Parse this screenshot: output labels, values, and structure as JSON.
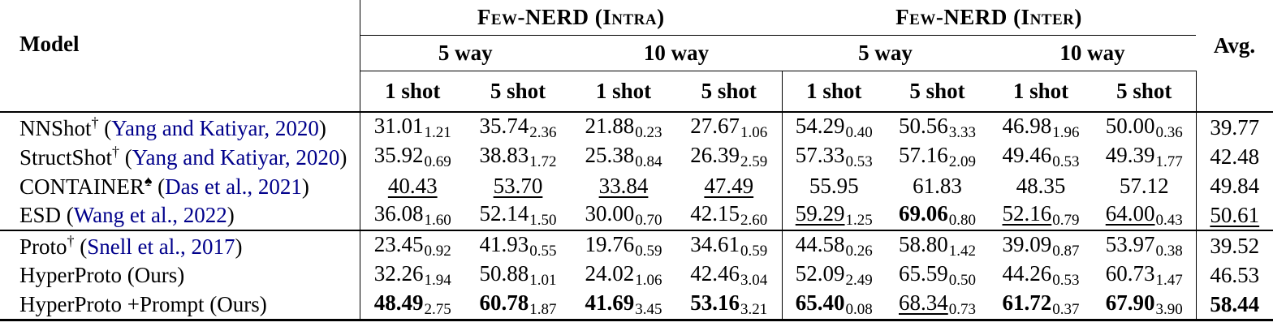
{
  "colors": {
    "citation_link": "#00008B"
  },
  "table": {
    "header": {
      "model_label": "Model",
      "avg_label": "Avg.",
      "dataset_groups": [
        "Few-NERD (Intra)",
        "Few-NERD (Inter)"
      ],
      "way_labels": [
        "5 way",
        "10 way",
        "5 way",
        "10 way"
      ],
      "shot_labels": [
        "1 shot",
        "5 shot",
        "1 shot",
        "5 shot",
        "1 shot",
        "5 shot",
        "1 shot",
        "5 shot"
      ]
    },
    "groups": [
      {
        "rows": [
          {
            "model": {
              "name": "NNShot",
              "sup": "†",
              "cite": "Yang and Katiyar, 2020"
            },
            "cells": [
              {
                "v": "31.01",
                "s": "1.21"
              },
              {
                "v": "35.74",
                "s": "2.36"
              },
              {
                "v": "21.88",
                "s": "0.23"
              },
              {
                "v": "27.67",
                "s": "1.06"
              },
              {
                "v": "54.29",
                "s": "0.40"
              },
              {
                "v": "50.56",
                "s": "3.33"
              },
              {
                "v": "46.98",
                "s": "1.96"
              },
              {
                "v": "50.00",
                "s": "0.36"
              }
            ],
            "avg": {
              "v": "39.77"
            }
          },
          {
            "model": {
              "name": "StructShot",
              "sup": "†",
              "cite": "Yang and Katiyar, 2020"
            },
            "cells": [
              {
                "v": "35.92",
                "s": "0.69"
              },
              {
                "v": "38.83",
                "s": "1.72"
              },
              {
                "v": "25.38",
                "s": "0.84"
              },
              {
                "v": "26.39",
                "s": "2.59"
              },
              {
                "v": "57.33",
                "s": "0.53"
              },
              {
                "v": "57.16",
                "s": "2.09"
              },
              {
                "v": "49.46",
                "s": "0.53"
              },
              {
                "v": "49.39",
                "s": "1.77"
              }
            ],
            "avg": {
              "v": "42.48"
            }
          },
          {
            "model": {
              "name": "CONTAINER",
              "sup": "♠",
              "cite": "Das et al., 2021"
            },
            "cells": [
              {
                "v": "40.43",
                "st": "u"
              },
              {
                "v": "53.70",
                "st": "u"
              },
              {
                "v": "33.84",
                "st": "u"
              },
              {
                "v": "47.49",
                "st": "u"
              },
              {
                "v": "55.95"
              },
              {
                "v": "61.83"
              },
              {
                "v": "48.35"
              },
              {
                "v": "57.12"
              }
            ],
            "avg": {
              "v": "49.84"
            }
          },
          {
            "model": {
              "name": "ESD",
              "sup": "",
              "cite": "Wang et al., 2022"
            },
            "cells": [
              {
                "v": "36.08",
                "s": "1.60"
              },
              {
                "v": "52.14",
                "s": "1.50"
              },
              {
                "v": "30.00",
                "s": "0.70"
              },
              {
                "v": "42.15",
                "s": "2.60"
              },
              {
                "v": "59.29",
                "s": "1.25",
                "st": "u"
              },
              {
                "v": "69.06",
                "s": "0.80",
                "st": "b"
              },
              {
                "v": "52.16",
                "s": "0.79",
                "st": "u"
              },
              {
                "v": "64.00",
                "s": "0.43",
                "st": "u"
              }
            ],
            "avg": {
              "v": "50.61",
              "st": "u"
            }
          }
        ]
      },
      {
        "rows": [
          {
            "model": {
              "name": "Proto",
              "sup": "†",
              "cite": "Snell et al., 2017"
            },
            "cells": [
              {
                "v": "23.45",
                "s": "0.92"
              },
              {
                "v": "41.93",
                "s": "0.55"
              },
              {
                "v": "19.76",
                "s": "0.59"
              },
              {
                "v": "34.61",
                "s": "0.59"
              },
              {
                "v": "44.58",
                "s": "0.26"
              },
              {
                "v": "58.80",
                "s": "1.42"
              },
              {
                "v": "39.09",
                "s": "0.87"
              },
              {
                "v": "53.97",
                "s": "0.38"
              }
            ],
            "avg": {
              "v": "39.52"
            }
          },
          {
            "model": {
              "name": "HyperProto",
              "sup": "",
              "note": "(Ours)"
            },
            "cells": [
              {
                "v": "32.26",
                "s": "1.94"
              },
              {
                "v": "50.88",
                "s": "1.01"
              },
              {
                "v": "24.02",
                "s": "1.06"
              },
              {
                "v": "42.46",
                "s": "3.04"
              },
              {
                "v": "52.09",
                "s": "2.49"
              },
              {
                "v": "65.59",
                "s": "0.50"
              },
              {
                "v": "44.26",
                "s": "0.53"
              },
              {
                "v": "60.73",
                "s": "1.47"
              }
            ],
            "avg": {
              "v": "46.53"
            }
          },
          {
            "model": {
              "name": "HyperProto +Prompt",
              "sup": "",
              "note": "(Ours)"
            },
            "cells": [
              {
                "v": "48.49",
                "s": "2.75",
                "st": "b"
              },
              {
                "v": "60.78",
                "s": "1.87",
                "st": "b"
              },
              {
                "v": "41.69",
                "s": "3.45",
                "st": "b"
              },
              {
                "v": "53.16",
                "s": "3.21",
                "st": "b"
              },
              {
                "v": "65.40",
                "s": "0.08",
                "st": "b"
              },
              {
                "v": "68.34",
                "s": "0.73",
                "st": "u"
              },
              {
                "v": "61.72",
                "s": "0.37",
                "st": "b"
              },
              {
                "v": "67.90",
                "s": "3.90",
                "st": "b"
              }
            ],
            "avg": {
              "v": "58.44",
              "st": "b"
            }
          }
        ]
      }
    ]
  }
}
